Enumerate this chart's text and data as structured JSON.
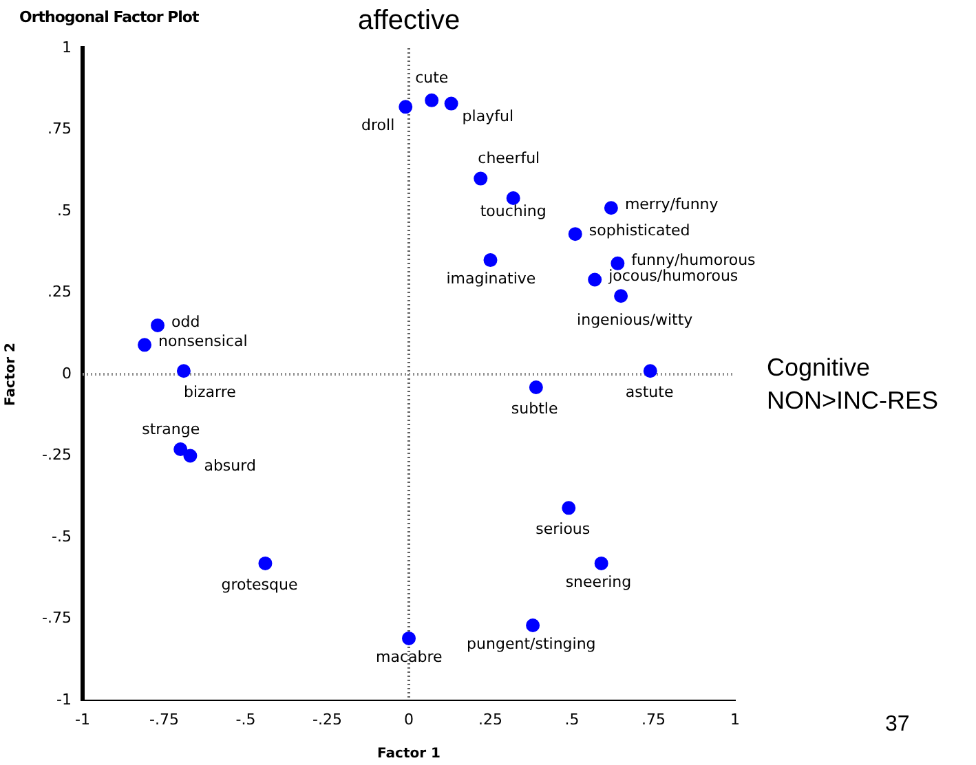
{
  "chart_data": {
    "type": "scatter",
    "title": "Orthogonal Factor Plot",
    "xlabel": "Factor 1",
    "ylabel": "Factor 2",
    "x": [
      0.07,
      -0.01,
      0.13,
      0.22,
      0.32,
      0.62,
      0.51,
      0.25,
      0.64,
      0.57,
      0.65,
      -0.77,
      -0.81,
      -0.69,
      0.74,
      0.39,
      -0.7,
      -0.67,
      0.49,
      -0.44,
      0.59,
      0.38,
      0
    ],
    "series": [
      {
        "color": "#0000ff",
        "values": [
          0.84,
          0.82,
          0.83,
          0.6,
          0.54,
          0.51,
          0.43,
          0.35,
          0.34,
          0.29,
          0.24,
          0.15,
          0.09,
          0.01,
          0.01,
          -0.04,
          -0.23,
          -0.25,
          -0.41,
          -0.58,
          -0.58,
          -0.77,
          -0.81
        ]
      }
    ],
    "annotations": [
      {
        "text": "cute",
        "x": 0.07,
        "y": 0.84
      },
      {
        "text": "droll",
        "x": -0.01,
        "y": 0.82
      },
      {
        "text": "playful",
        "x": 0.13,
        "y": 0.83
      },
      {
        "text": "cheerful",
        "x": 0.22,
        "y": 0.6
      },
      {
        "text": "touching",
        "x": 0.32,
        "y": 0.54
      },
      {
        "text": "merry/funny",
        "x": 0.62,
        "y": 0.51
      },
      {
        "text": "sophisticated",
        "x": 0.51,
        "y": 0.43
      },
      {
        "text": "imaginative",
        "x": 0.25,
        "y": 0.35
      },
      {
        "text": "funny/humorous",
        "x": 0.64,
        "y": 0.34
      },
      {
        "text": "jocous/humorous",
        "x": 0.57,
        "y": 0.29
      },
      {
        "text": "ingenious/witty",
        "x": 0.65,
        "y": 0.24
      },
      {
        "text": "odd",
        "x": -0.77,
        "y": 0.15
      },
      {
        "text": "nonsensical",
        "x": -0.81,
        "y": 0.09
      },
      {
        "text": "bizarre",
        "x": -0.69,
        "y": 0.01
      },
      {
        "text": "astute",
        "x": 0.74,
        "y": 0.01
      },
      {
        "text": "subtle",
        "x": 0.39,
        "y": -0.04
      },
      {
        "text": "strange",
        "x": -0.7,
        "y": -0.23
      },
      {
        "text": "absurd",
        "x": -0.67,
        "y": -0.25
      },
      {
        "text": "serious",
        "x": 0.49,
        "y": -0.41
      },
      {
        "text": "grotesque",
        "x": -0.44,
        "y": -0.58
      },
      {
        "text": "sneering",
        "x": 0.59,
        "y": -0.58
      },
      {
        "text": "pungent/stinging",
        "x": 0.38,
        "y": -0.77
      },
      {
        "text": "macabre",
        "x": 0,
        "y": -0.81
      },
      "affective",
      "Cognitive",
      "NON>INC-RES",
      "37"
    ],
    "xlim": [
      -1,
      1
    ],
    "ylim": [
      -1,
      1
    ],
    "xticks": [
      -1,
      {
        "value": -0.75,
        "label": "-.75"
      },
      {
        "value": -0.5,
        "label": "-.5"
      },
      {
        "value": -0.25,
        "label": "-.25"
      },
      0,
      {
        "value": 0.25,
        "label": ".25"
      },
      {
        "value": 0.5,
        "label": ".5"
      },
      {
        "value": 0.75,
        "label": ".75"
      },
      1
    ],
    "yticks": [
      -1,
      {
        "value": -0.75,
        "label": "-.75"
      },
      {
        "value": -0.5,
        "label": "-.5"
      },
      {
        "value": -0.25,
        "label": "-.25"
      },
      0,
      {
        "value": 0.25,
        "label": ".25"
      },
      {
        "value": 0.5,
        "label": ".5"
      },
      {
        "value": 0.75,
        "label": ".75"
      },
      1
    ],
    "ref_lines": [
      {
        "axis": "x",
        "value": 0,
        "color": "#606060",
        "line_style": "dotted"
      },
      {
        "axis": "y",
        "value": 0,
        "color": "#909090",
        "line_style": "dotted"
      }
    ],
    "grid": false,
    "legend": false,
    "marker": "circle"
  }
}
